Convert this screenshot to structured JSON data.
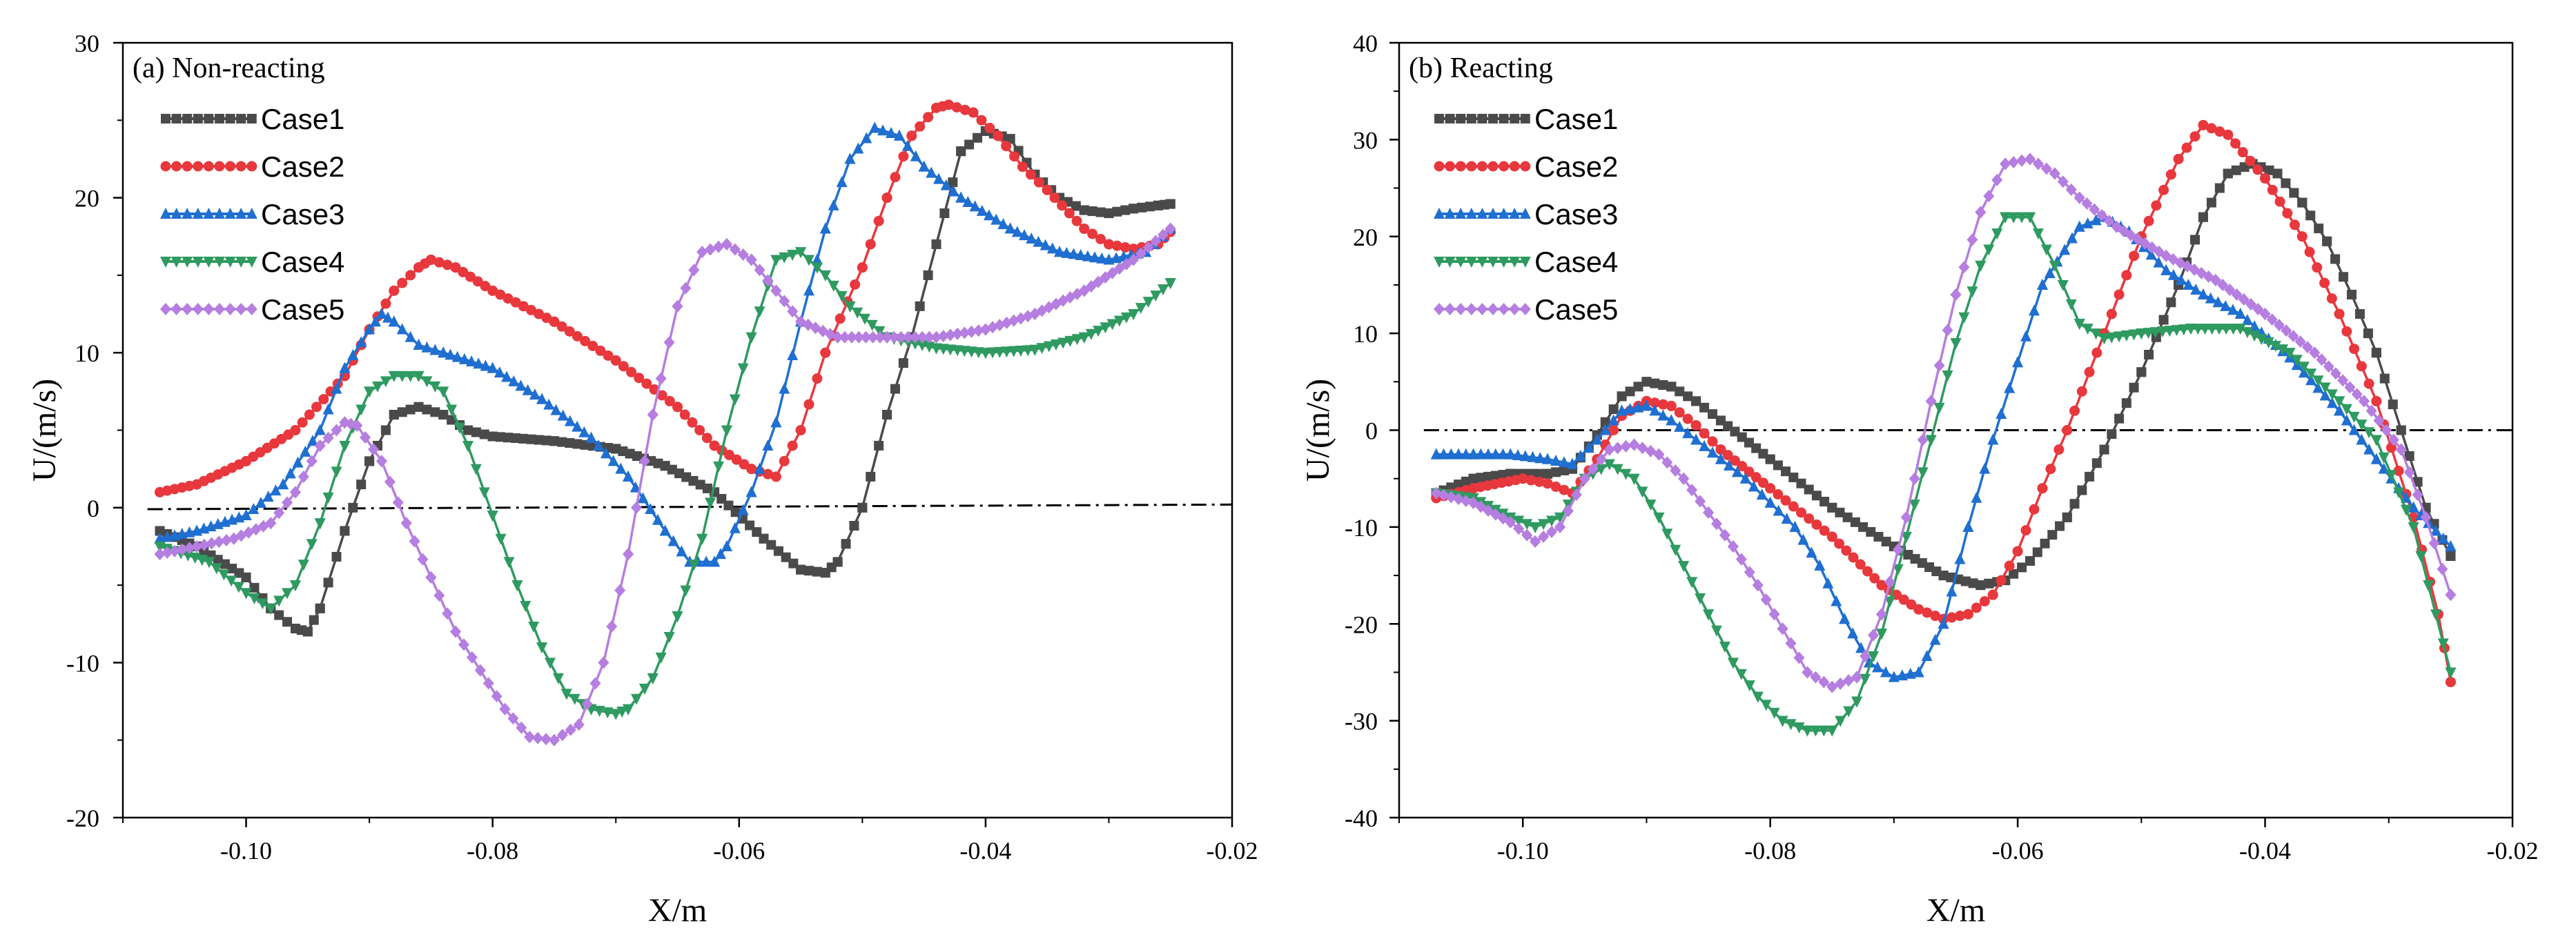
{
  "chart_data": [
    {
      "type": "line",
      "title": "(a) Non-reacting",
      "xlabel": "X/m",
      "ylabel": "U/(m/s)",
      "xlim": [
        -0.11,
        -0.02
      ],
      "ylim": [
        -20,
        30
      ],
      "xticks": [
        -0.1,
        -0.08,
        -0.06,
        -0.04,
        -0.02
      ],
      "xtick_labels": [
        "-0.10",
        "-0.08",
        "-0.06",
        "-0.04",
        "-0.02"
      ],
      "yticks": [
        -20,
        -10,
        0,
        10,
        20,
        30
      ],
      "ytick_labels": [
        "-20",
        "-10",
        "0",
        "10",
        "20",
        "30"
      ],
      "grid": false,
      "legend_position": "top-left",
      "reference_line": {
        "x": [
          -0.108,
          -0.02
        ],
        "y": [
          -0.1,
          0.2
        ],
        "style": "dash-dot"
      },
      "series": [
        {
          "name": "Case1",
          "color": "#4a4a4a",
          "marker": "square",
          "x": [
            -0.107,
            -0.104,
            -0.1,
            -0.098,
            -0.096,
            -0.095,
            -0.094,
            -0.092,
            -0.09,
            -0.088,
            -0.086,
            -0.084,
            -0.082,
            -0.08,
            -0.075,
            -0.07,
            -0.066,
            -0.062,
            -0.058,
            -0.055,
            -0.053,
            -0.052,
            -0.05,
            -0.048,
            -0.046,
            -0.044,
            -0.042,
            -0.04,
            -0.038,
            -0.036,
            -0.034,
            -0.032,
            -0.03,
            -0.028,
            -0.026,
            -0.025
          ],
          "y": [
            -1.5,
            -2.5,
            -4.5,
            -6.5,
            -7.8,
            -8,
            -6.5,
            -1.5,
            3,
            6,
            6.5,
            6,
            5,
            4.6,
            4.3,
            3.8,
            2.7,
            1,
            -2,
            -4,
            -4.2,
            -3.5,
            0,
            6,
            11,
            17,
            23,
            24.3,
            23.8,
            21.5,
            20,
            19.2,
            19,
            19.3,
            19.5,
            19.6
          ]
        },
        {
          "name": "Case2",
          "color": "#e8383d",
          "marker": "circle",
          "x": [
            -0.107,
            -0.104,
            -0.1,
            -0.096,
            -0.092,
            -0.09,
            -0.088,
            -0.086,
            -0.085,
            -0.083,
            -0.08,
            -0.075,
            -0.07,
            -0.065,
            -0.062,
            -0.059,
            -0.057,
            -0.055,
            -0.053,
            -0.05,
            -0.048,
            -0.046,
            -0.044,
            -0.043,
            -0.041,
            -0.039,
            -0.037,
            -0.035,
            -0.032,
            -0.03,
            -0.028,
            -0.026,
            -0.025
          ],
          "y": [
            1,
            1.5,
            3,
            5,
            8.5,
            11.5,
            14,
            15.5,
            16,
            15.5,
            14,
            12,
            9.5,
            6.5,
            4,
            2.5,
            2,
            5,
            10,
            15.5,
            20,
            24,
            25.8,
            26,
            25.5,
            24,
            22,
            20.5,
            18,
            17,
            16.7,
            17,
            17.8
          ]
        },
        {
          "name": "Case3",
          "color": "#1f6fd1",
          "marker": "triangle-up",
          "x": [
            -0.107,
            -0.104,
            -0.1,
            -0.097,
            -0.094,
            -0.092,
            -0.09,
            -0.089,
            -0.088,
            -0.086,
            -0.084,
            -0.08,
            -0.076,
            -0.072,
            -0.069,
            -0.066,
            -0.064,
            -0.062,
            -0.061,
            -0.059,
            -0.057,
            -0.055,
            -0.053,
            -0.051,
            -0.049,
            -0.047,
            -0.045,
            -0.042,
            -0.038,
            -0.034,
            -0.03,
            -0.027,
            -0.025
          ],
          "y": [
            -2,
            -1.5,
            -0.5,
            1.5,
            5,
            9,
            11.5,
            12.5,
            12,
            10.5,
            10,
            9,
            7,
            4.5,
            2,
            -1.5,
            -3.5,
            -3.5,
            -2.5,
            1,
            5.5,
            12,
            18,
            22.5,
            24.5,
            24,
            22,
            20,
            18,
            16.5,
            16,
            16.5,
            18
          ]
        },
        {
          "name": "Case4",
          "color": "#2e9a60",
          "marker": "triangle-down",
          "x": [
            -0.107,
            -0.103,
            -0.1,
            -0.098,
            -0.096,
            -0.094,
            -0.092,
            -0.09,
            -0.088,
            -0.086,
            -0.084,
            -0.082,
            -0.08,
            -0.078,
            -0.076,
            -0.074,
            -0.072,
            -0.07,
            -0.069,
            -0.067,
            -0.065,
            -0.063,
            -0.061,
            -0.059,
            -0.057,
            -0.055,
            -0.053,
            -0.051,
            -0.048,
            -0.044,
            -0.04,
            -0.036,
            -0.032,
            -0.028,
            -0.025
          ],
          "y": [
            -2.5,
            -3.5,
            -5.5,
            -6.5,
            -5,
            -1,
            4,
            7.5,
            8.5,
            8.5,
            7.5,
            4,
            -0.5,
            -5,
            -9,
            -12,
            -13,
            -13.3,
            -13,
            -11,
            -7,
            -2,
            5,
            11,
            16,
            16.5,
            15,
            13,
            11,
            10.3,
            10,
            10.2,
            11,
            12.5,
            14.5
          ]
        },
        {
          "name": "Case5",
          "color": "#b57ee0",
          "marker": "diamond",
          "x": [
            -0.107,
            -0.104,
            -0.101,
            -0.098,
            -0.096,
            -0.094,
            -0.092,
            -0.091,
            -0.089,
            -0.087,
            -0.085,
            -0.083,
            -0.081,
            -0.079,
            -0.077,
            -0.075,
            -0.073,
            -0.071,
            -0.069,
            -0.067,
            -0.065,
            -0.063,
            -0.061,
            -0.059,
            -0.057,
            -0.055,
            -0.052,
            -0.048,
            -0.044,
            -0.04,
            -0.036,
            -0.032,
            -0.028,
            -0.025
          ],
          "y": [
            -3,
            -2.5,
            -2,
            -1,
            1,
            4,
            5.5,
            5.3,
            3,
            -1,
            -4.5,
            -8,
            -10.5,
            -13,
            -14.8,
            -15,
            -14,
            -10,
            -3,
            6,
            13,
            16.5,
            17,
            16,
            14,
            12,
            11,
            11,
            11,
            11.5,
            12.5,
            14,
            16,
            18
          ]
        }
      ]
    },
    {
      "type": "line",
      "title": "(b) Reacting",
      "xlabel": "X/m",
      "ylabel": "U/(m/s)",
      "xlim": [
        -0.11,
        -0.02
      ],
      "ylim": [
        -40,
        40
      ],
      "xticks": [
        -0.1,
        -0.08,
        -0.06,
        -0.04,
        -0.02
      ],
      "xtick_labels": [
        "-0.10",
        "-0.08",
        "-0.06",
        "-0.04",
        "-0.02"
      ],
      "yticks": [
        -40,
        -30,
        -20,
        -10,
        0,
        10,
        20,
        30,
        40
      ],
      "ytick_labels": [
        "-40",
        "-30",
        "-20",
        "-10",
        "0",
        "10",
        "20",
        "30",
        "40"
      ],
      "grid": false,
      "legend_position": "top-left",
      "reference_line": {
        "x": [
          -0.108,
          -0.02
        ],
        "y": [
          0,
          0
        ],
        "style": "dash-dot"
      },
      "series": [
        {
          "name": "Case1",
          "color": "#4a4a4a",
          "marker": "square",
          "x": [
            -0.107,
            -0.104,
            -0.101,
            -0.098,
            -0.096,
            -0.094,
            -0.092,
            -0.09,
            -0.088,
            -0.086,
            -0.084,
            -0.08,
            -0.075,
            -0.07,
            -0.066,
            -0.063,
            -0.061,
            -0.059,
            -0.056,
            -0.053,
            -0.05,
            -0.047,
            -0.045,
            -0.043,
            -0.041,
            -0.039,
            -0.037,
            -0.035,
            -0.033,
            -0.031,
            -0.029,
            -0.027,
            -0.025
          ],
          "y": [
            -6.5,
            -5,
            -4.5,
            -4.5,
            -4,
            -0.5,
            3.5,
            5,
            4.5,
            3,
            1,
            -3,
            -8,
            -12,
            -15,
            -16,
            -15.5,
            -13.5,
            -9,
            -2,
            6,
            15,
            22,
            26.5,
            27.5,
            26.5,
            23.5,
            19.5,
            14,
            8,
            0,
            -8,
            -13
          ]
        },
        {
          "name": "Case2",
          "color": "#e8383d",
          "marker": "circle",
          "x": [
            -0.107,
            -0.104,
            -0.1,
            -0.098,
            -0.096,
            -0.094,
            -0.092,
            -0.09,
            -0.088,
            -0.086,
            -0.084,
            -0.08,
            -0.075,
            -0.071,
            -0.068,
            -0.066,
            -0.064,
            -0.062,
            -0.06,
            -0.058,
            -0.056,
            -0.053,
            -0.05,
            -0.047,
            -0.045,
            -0.043,
            -0.04,
            -0.037,
            -0.034,
            -0.031,
            -0.028,
            -0.026,
            -0.025
          ],
          "y": [
            -7,
            -6,
            -5,
            -5.5,
            -6.5,
            -3,
            1.5,
            3,
            2.5,
            0.5,
            -2,
            -6,
            -11,
            -16,
            -18.5,
            -19.5,
            -19,
            -17,
            -12.5,
            -6,
            0,
            10,
            20,
            28,
            31.5,
            30.5,
            26,
            20,
            12,
            3,
            -9,
            -19,
            -26
          ]
        },
        {
          "name": "Case3",
          "color": "#1f6fd1",
          "marker": "triangle-up",
          "x": [
            -0.107,
            -0.104,
            -0.101,
            -0.098,
            -0.096,
            -0.094,
            -0.092,
            -0.09,
            -0.088,
            -0.086,
            -0.084,
            -0.082,
            -0.08,
            -0.078,
            -0.076,
            -0.074,
            -0.072,
            -0.07,
            -0.068,
            -0.066,
            -0.064,
            -0.062,
            -0.06,
            -0.058,
            -0.055,
            -0.053,
            -0.051,
            -0.048,
            -0.045,
            -0.042,
            -0.038,
            -0.034,
            -0.031,
            -0.028,
            -0.025
          ],
          "y": [
            -2.5,
            -2.5,
            -2.5,
            -3,
            -3.5,
            -1,
            2,
            2.5,
            1,
            -1,
            -3,
            -5,
            -7.5,
            -10,
            -14,
            -19.5,
            -24,
            -25.5,
            -25,
            -20,
            -10,
            -1,
            7,
            15,
            21,
            22,
            20.5,
            16.5,
            14,
            12,
            7.5,
            2,
            -3,
            -8,
            -12
          ]
        },
        {
          "name": "Case4",
          "color": "#2e9a60",
          "marker": "triangle-down",
          "x": [
            -0.107,
            -0.104,
            -0.101,
            -0.099,
            -0.097,
            -0.095,
            -0.093,
            -0.091,
            -0.089,
            -0.087,
            -0.085,
            -0.083,
            -0.081,
            -0.079,
            -0.077,
            -0.075,
            -0.073,
            -0.071,
            -0.069,
            -0.067,
            -0.065,
            -0.063,
            -0.061,
            -0.059,
            -0.057,
            -0.055,
            -0.053,
            -0.05,
            -0.046,
            -0.042,
            -0.038,
            -0.034,
            -0.031,
            -0.028,
            -0.025
          ],
          "y": [
            -6.5,
            -7,
            -9,
            -10,
            -9,
            -5,
            -3.5,
            -5,
            -9,
            -14,
            -19,
            -24,
            -27.5,
            -30,
            -31,
            -31,
            -28,
            -21,
            -11,
            -1,
            9,
            17,
            22,
            22,
            17,
            11,
            9.5,
            10,
            10.5,
            10.5,
            8,
            3,
            -1,
            -10,
            -25
          ]
        },
        {
          "name": "Case5",
          "color": "#b57ee0",
          "marker": "diamond",
          "x": [
            -0.107,
            -0.104,
            -0.101,
            -0.099,
            -0.097,
            -0.095,
            -0.093,
            -0.091,
            -0.089,
            -0.087,
            -0.085,
            -0.083,
            -0.081,
            -0.079,
            -0.077,
            -0.075,
            -0.073,
            -0.071,
            -0.069,
            -0.067,
            -0.065,
            -0.063,
            -0.061,
            -0.059,
            -0.057,
            -0.055,
            -0.052,
            -0.048,
            -0.044,
            -0.04,
            -0.036,
            -0.032,
            -0.029,
            -0.027,
            -0.025
          ],
          "y": [
            -6.5,
            -7.5,
            -9.5,
            -11.5,
            -10,
            -5,
            -2,
            -1.5,
            -2.5,
            -5,
            -8.5,
            -12,
            -16,
            -20.5,
            -25,
            -26.5,
            -25.5,
            -19,
            -9,
            3,
            14,
            22.5,
            27.5,
            28,
            26.5,
            24,
            21,
            18,
            15.5,
            12,
            8,
            3,
            -2,
            -9,
            -17
          ]
        }
      ]
    }
  ]
}
